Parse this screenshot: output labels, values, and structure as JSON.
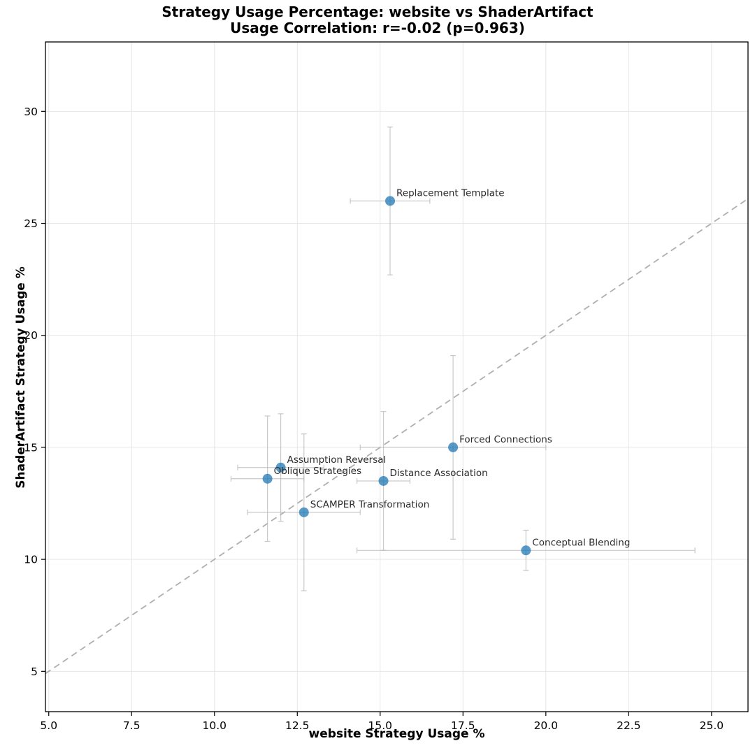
{
  "title": {
    "line1": "Strategy Usage Percentage: website vs ShaderArtifact",
    "line2": "Usage Correlation: r=-0.02 (p=0.963)"
  },
  "chart_data": {
    "type": "scatter",
    "title": "Strategy Usage Percentage: website vs ShaderArtifact",
    "subtitle": "Usage Correlation: r=-0.02 (p=0.963)",
    "xlabel": "website Strategy Usage %",
    "ylabel": "ShaderArtifact Strategy Usage %",
    "xlim": [
      4.9,
      26.1
    ],
    "ylim": [
      3.2,
      33.1
    ],
    "x_ticks": [
      5.0,
      7.5,
      10.0,
      12.5,
      15.0,
      17.5,
      20.0,
      22.5,
      25.0
    ],
    "x_tick_labels": [
      "5.0",
      "7.5",
      "10.0",
      "12.5",
      "15.0",
      "17.5",
      "20.0",
      "22.5",
      "25.0"
    ],
    "y_ticks": [
      5,
      10,
      15,
      20,
      25,
      30
    ],
    "y_tick_labels": [
      "5",
      "10",
      "15",
      "20",
      "25",
      "30"
    ],
    "grid": true,
    "legend": false,
    "identity_line": {
      "style": "dashed",
      "equation": "y = x"
    },
    "points": [
      {
        "label": "Replacement Template",
        "x": 15.3,
        "y": 26.0,
        "xerr": 1.2,
        "yerr": 3.3
      },
      {
        "label": "Forced Connections",
        "x": 17.2,
        "y": 15.0,
        "xerr": 2.8,
        "yerr": 4.1
      },
      {
        "label": "Assumption Reversal",
        "x": 12.0,
        "y": 14.1,
        "xerr": 1.3,
        "yerr": 2.4
      },
      {
        "label": "Oblique Strategies",
        "x": 11.6,
        "y": 13.6,
        "xerr": 1.1,
        "yerr": 2.8
      },
      {
        "label": "Distance Association",
        "x": 15.1,
        "y": 13.5,
        "xerr": 0.8,
        "yerr": 3.1
      },
      {
        "label": "SCAMPER Transformation",
        "x": 12.7,
        "y": 12.1,
        "xerr": 1.7,
        "yerr": 3.5
      },
      {
        "label": "Conceptual Blending",
        "x": 19.4,
        "y": 10.4,
        "xerr": 5.1,
        "yerr": 0.9
      }
    ],
    "colors": {
      "point": "#1f77b4",
      "error_bar": "#bbbbbb",
      "identity_line": "#a6a6a6",
      "grid": "#e6e6e6",
      "spine": "#000000",
      "label_text": "#2b2b2b"
    }
  }
}
